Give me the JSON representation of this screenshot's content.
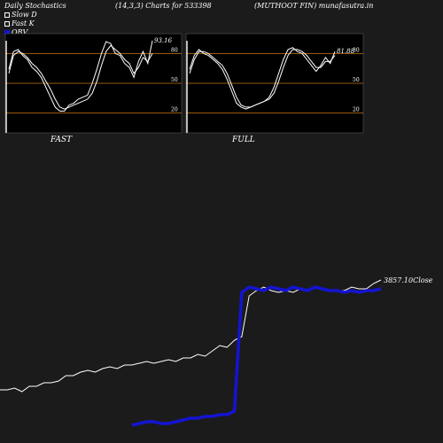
{
  "header": {
    "title": "Daily Stochastics",
    "params": "(14,3,3) Charts for 533398",
    "ticker": "(MUTHOOT FIN) munafasutra.in"
  },
  "legend": [
    {
      "label": "Slow  D",
      "color": "#ffffff"
    },
    {
      "label": "Fast K",
      "color": "#ffffff"
    },
    {
      "label": "OBV",
      "color": "#1414d2"
    }
  ],
  "colors": {
    "background": "#1b1b1b",
    "panel": "#000000",
    "level_line": "#c87814",
    "obv": "#1414d2",
    "price": "#ffffff"
  },
  "chart_data": [
    {
      "type": "line",
      "panel": "FAST",
      "ylim": [
        0,
        100
      ],
      "levels": [
        20,
        50,
        80
      ],
      "level_labels": [
        "20",
        "50",
        "80"
      ],
      "last_value_label": "93.16",
      "series": [
        {
          "name": "Slow  D",
          "values": [
            60,
            78,
            82,
            80,
            76,
            70,
            66,
            60,
            52,
            44,
            34,
            26,
            24,
            26,
            28,
            30,
            32,
            34,
            40,
            52,
            68,
            82,
            88,
            84,
            80,
            74,
            70,
            60,
            66,
            76,
            72,
            80
          ]
        },
        {
          "name": "Fast K",
          "values": [
            64,
            82,
            84,
            78,
            74,
            66,
            62,
            56,
            46,
            36,
            26,
            22,
            22,
            28,
            30,
            34,
            36,
            38,
            50,
            64,
            80,
            92,
            90,
            80,
            78,
            70,
            66,
            56,
            72,
            82,
            70,
            93
          ]
        }
      ]
    },
    {
      "type": "line",
      "panel": "FULL",
      "ylim": [
        0,
        100
      ],
      "levels": [
        20,
        50,
        80
      ],
      "level_labels": [
        "20",
        "50",
        "80"
      ],
      "last_value_label": "81.88",
      "series": [
        {
          "name": "Slow  D",
          "values": [
            60,
            74,
            82,
            82,
            80,
            76,
            72,
            68,
            60,
            48,
            36,
            28,
            26,
            26,
            28,
            30,
            32,
            34,
            40,
            52,
            66,
            78,
            84,
            84,
            82,
            78,
            72,
            66,
            66,
            72,
            72,
            78
          ]
        },
        {
          "name": "Fast K",
          "values": [
            64,
            78,
            84,
            80,
            78,
            74,
            70,
            64,
            54,
            42,
            30,
            26,
            24,
            26,
            28,
            30,
            32,
            36,
            46,
            60,
            74,
            84,
            86,
            82,
            80,
            74,
            68,
            62,
            68,
            76,
            70,
            82
          ]
        }
      ]
    },
    {
      "type": "line",
      "panel": "OBV",
      "last_value_label": "3857.10Close",
      "series": [
        {
          "name": "Close",
          "values": [
            30,
            30,
            31,
            29,
            32,
            32,
            34,
            34,
            35,
            38,
            38,
            40,
            41,
            40,
            42,
            43,
            42,
            44,
            44,
            45,
            46,
            45,
            46,
            47,
            46,
            48,
            48,
            50,
            49,
            52,
            55,
            54,
            58,
            60,
            83,
            86,
            88,
            86,
            85,
            86,
            85,
            87,
            86,
            88,
            87,
            86,
            86,
            86,
            88,
            87,
            87,
            90,
            92
          ]
        },
        {
          "name": "OBV",
          "values": [
            null,
            null,
            null,
            null,
            null,
            null,
            null,
            null,
            null,
            null,
            null,
            null,
            null,
            null,
            null,
            null,
            null,
            null,
            10,
            11,
            12,
            12,
            11,
            11,
            12,
            13,
            14,
            14,
            15,
            15,
            16,
            16,
            18,
            85,
            88,
            87,
            86,
            88,
            87,
            86,
            88,
            87,
            86,
            88,
            87,
            86,
            86,
            85,
            86,
            85,
            86,
            86,
            87
          ]
        }
      ]
    }
  ]
}
